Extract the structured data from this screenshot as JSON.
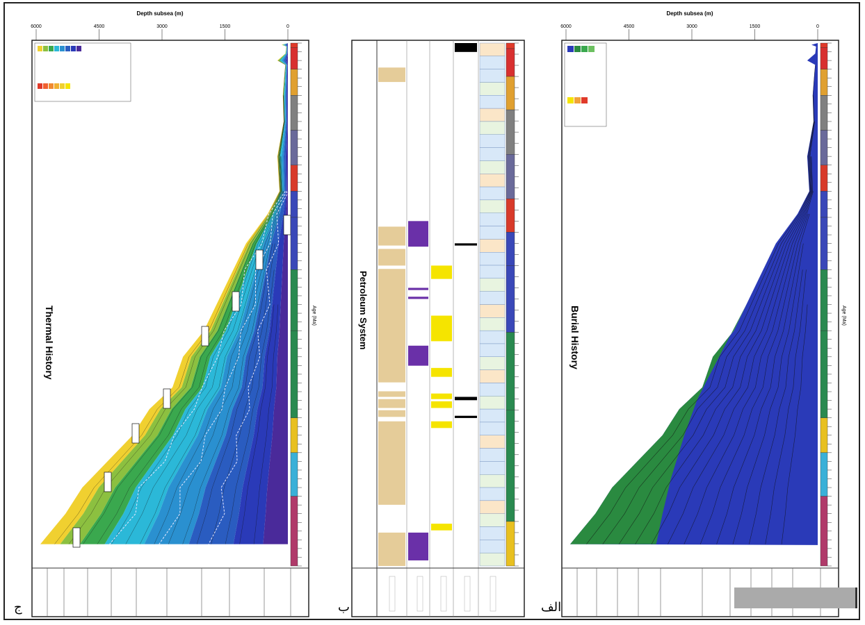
{
  "figure": {
    "panel_labels": {
      "left": "ج",
      "middle": "ب",
      "right": "الف"
    }
  },
  "chart_data": [
    {
      "panel": "burial",
      "type": "area",
      "title": "Burial History",
      "xlabel": "Age (Ma)",
      "ylabel": "Depth subsea (m)",
      "xlim": [
        600,
        0
      ],
      "ylim": [
        0,
        6000
      ],
      "y_ticks": [
        0,
        1500,
        3000,
        4500,
        6000
      ],
      "layer_colors": [
        "#2a3ab8",
        "#2a8a40",
        "#3aa84e",
        "#6cc060"
      ],
      "legend": [],
      "surface_top": [
        [
          0,
          0
        ],
        [
          2,
          150
        ],
        [
          4,
          40
        ],
        [
          12,
          60
        ],
        [
          20,
          250
        ],
        [
          25,
          60
        ],
        [
          35,
          80
        ],
        [
          60,
          120
        ],
        [
          90,
          100
        ],
        [
          130,
          250
        ],
        [
          170,
          200
        ],
        [
          196,
          480
        ],
        [
          230,
          1000
        ],
        [
          260,
          1300
        ],
        [
          300,
          1700
        ],
        [
          330,
          2000
        ],
        [
          360,
          2500
        ],
        [
          395,
          2750
        ],
        [
          420,
          3300
        ],
        [
          450,
          3700
        ],
        [
          480,
          4300
        ],
        [
          510,
          4900
        ],
        [
          540,
          5300
        ],
        [
          575,
          5900
        ]
      ],
      "green_boundary": [
        [
          196,
          480
        ],
        [
          230,
          1000
        ],
        [
          300,
          1700
        ],
        [
          385,
          2620
        ],
        [
          410,
          2880
        ],
        [
          450,
          3180
        ],
        [
          500,
          3500
        ],
        [
          540,
          3700
        ],
        [
          575,
          3850
        ]
      ]
    },
    {
      "panel": "petroleum-system",
      "type": "table",
      "title": "Petroleum System",
      "rows": [
        {
          "color": "#000000",
          "spans": [
            [
              0,
              8
            ],
            [
              180,
              182
            ],
            [
              318,
              321
            ],
            [
              335,
              337
            ]
          ]
        },
        {
          "color": "#f5e400",
          "spans": [
            [
              200,
              212
            ],
            [
              245,
              268
            ],
            [
              292,
              300
            ],
            [
              315,
              320
            ],
            [
              322,
              328
            ],
            [
              340,
              346
            ],
            [
              432,
              438
            ]
          ]
        },
        {
          "color": "#6a30a8",
          "spans": [
            [
              160,
              183
            ],
            [
              220,
              222
            ],
            [
              228,
              230
            ],
            [
              272,
              290
            ],
            [
              440,
              465
            ]
          ]
        },
        {
          "color": "#e5cc99",
          "spans": [
            [
              22,
              35
            ],
            [
              165,
              182
            ],
            [
              185,
              200
            ],
            [
              203,
              305
            ],
            [
              313,
              318
            ],
            [
              320,
              328
            ],
            [
              330,
              336
            ],
            [
              340,
              415
            ],
            [
              440,
              470
            ]
          ]
        }
      ]
    },
    {
      "panel": "thermal",
      "type": "heatmap",
      "title": "Thermal History",
      "xlabel": "Age (Ma)",
      "ylabel": "Depth subsea (m)",
      "xlim": [
        600,
        0
      ],
      "ylim": [
        0,
        6000
      ],
      "y_ticks": [
        0,
        1500,
        3000,
        4500,
        6000
      ],
      "temperature_colors": [
        "#f0d030",
        "#8cc040",
        "#3aa84e",
        "#2bb8d8",
        "#2a90d0",
        "#2a5cc0",
        "#2a3ab8",
        "#4a2a9a"
      ],
      "legend": [],
      "surface_top": [
        [
          0,
          0
        ],
        [
          2,
          150
        ],
        [
          4,
          40
        ],
        [
          12,
          60
        ],
        [
          20,
          250
        ],
        [
          25,
          60
        ],
        [
          35,
          80
        ],
        [
          60,
          120
        ],
        [
          90,
          100
        ],
        [
          130,
          250
        ],
        [
          170,
          200
        ],
        [
          196,
          480
        ],
        [
          230,
          1000
        ],
        [
          260,
          1300
        ],
        [
          300,
          1700
        ],
        [
          330,
          2000
        ],
        [
          360,
          2500
        ],
        [
          395,
          2750
        ],
        [
          420,
          3300
        ],
        [
          450,
          3700
        ],
        [
          480,
          4300
        ],
        [
          510,
          4900
        ],
        [
          540,
          5300
        ],
        [
          575,
          5900
        ]
      ]
    }
  ]
}
